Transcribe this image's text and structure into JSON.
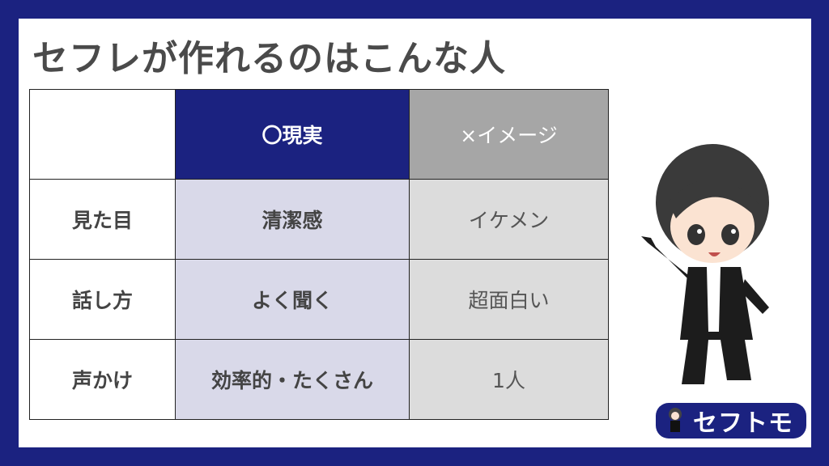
{
  "title": "セフレが作れるのはこんな人",
  "table": {
    "header": [
      "",
      "〇現実",
      "×イメージ"
    ],
    "rows": [
      {
        "label": "見た目",
        "reality": "清潔感",
        "image": "イケメン"
      },
      {
        "label": "話し方",
        "reality": "よく聞く",
        "image": "超面白い"
      },
      {
        "label": "声かけ",
        "reality": "効率的・たくさん",
        "image": "1人"
      }
    ]
  },
  "logo": {
    "text": "セフトモ"
  },
  "colors": {
    "brand": "#1b2280",
    "reality_bg": "#d9d9e9",
    "image_bg": "#dcdcdc",
    "image_header": "#a6a6a6",
    "title": "#4a4a4a"
  }
}
